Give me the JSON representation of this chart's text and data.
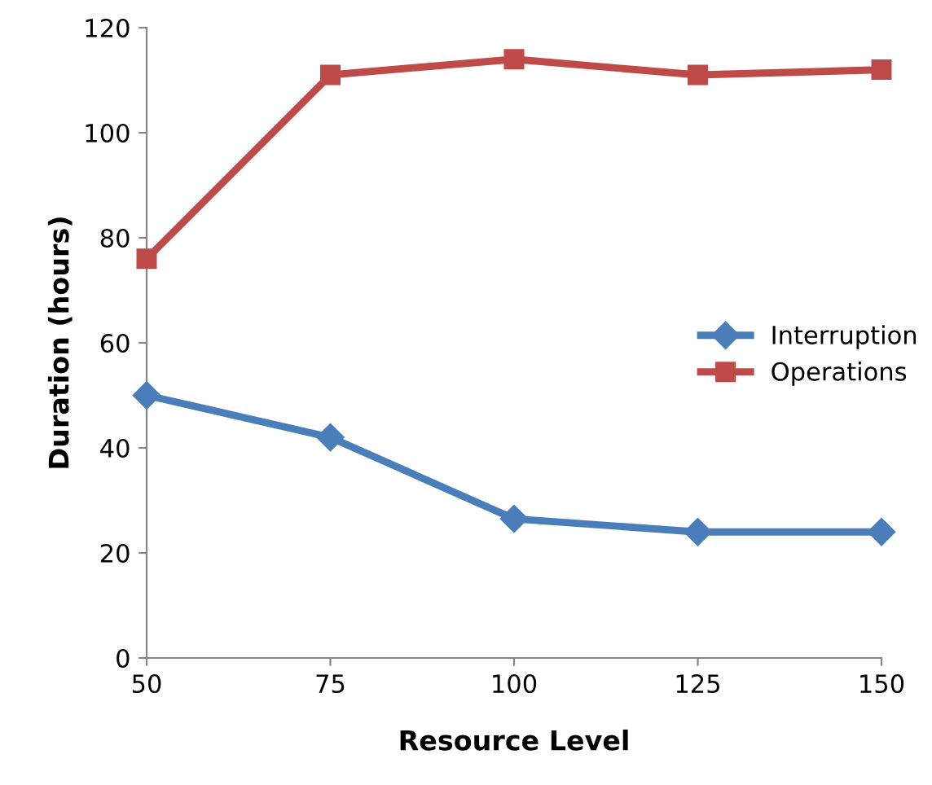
{
  "chart_data": {
    "type": "line",
    "xlabel": "Resource Level",
    "ylabel": "Duration (hours)",
    "x": [
      50,
      75,
      100,
      125,
      150
    ],
    "series": [
      {
        "name": "Interruption",
        "color": "#4a7ebb",
        "values": [
          50,
          42,
          26.5,
          24,
          24
        ],
        "marker": "diamond"
      },
      {
        "name": "Operations",
        "color": "#be4b48",
        "values": [
          76,
          111,
          114,
          111,
          112
        ],
        "marker": "square"
      }
    ],
    "xlim": [
      50,
      150
    ],
    "xticks": [
      50,
      75,
      100,
      125,
      150
    ],
    "ylim": [
      0,
      120
    ],
    "yticks": [
      0,
      20,
      40,
      60,
      80,
      100,
      120
    ],
    "grid": false,
    "legend": "right",
    "line_style": "solid"
  }
}
